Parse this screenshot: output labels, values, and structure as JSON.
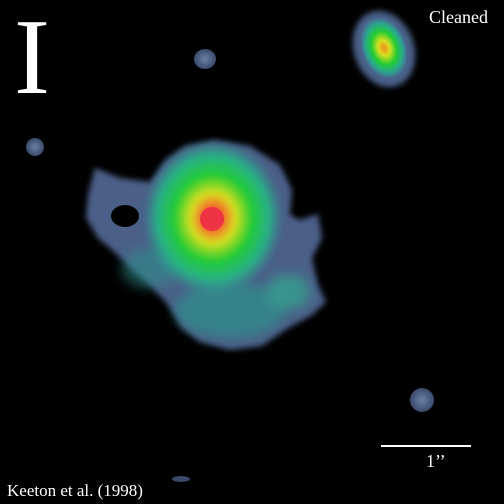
{
  "band_label": "I",
  "status_text": "Cleaned",
  "scale_bar": {
    "label": "1’’"
  },
  "credit": "Keeton et al. (1998)",
  "colors": {
    "background": "#000000",
    "halo": "#4a5f86",
    "teal": "#2f9b93",
    "green": "#22cc33",
    "yellow": "#d8e020",
    "core": "#ee3344"
  }
}
